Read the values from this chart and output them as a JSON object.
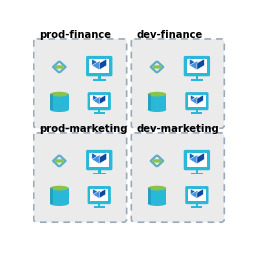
{
  "panels": [
    {
      "label": "prod-finance",
      "row": 0,
      "col": 0
    },
    {
      "label": "dev-finance",
      "row": 0,
      "col": 1
    },
    {
      "label": "prod-marketing",
      "row": 1,
      "col": 0
    },
    {
      "label": "dev-marketing",
      "row": 1,
      "col": 1
    }
  ],
  "bg_color": "#ffffff",
  "panel_bg": "#ebebeb",
  "panel_border": "#9ab",
  "label_color": "#000000",
  "label_fontsize": 7.2,
  "label_fontweight": "bold",
  "cyan": "#29b8d8",
  "blue_face": "#1565c0",
  "blue_top": "#4a90d9",
  "blue_right": "#0d47a1",
  "green_top": "#8bc34a",
  "dots_color": "#8bc34a",
  "arrow_color": "#5baec8"
}
